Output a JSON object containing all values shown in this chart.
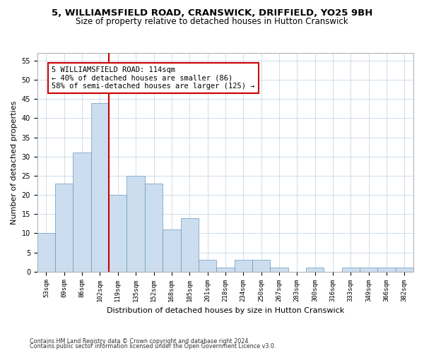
{
  "title": "5, WILLIAMSFIELD ROAD, CRANSWICK, DRIFFIELD, YO25 9BH",
  "subtitle": "Size of property relative to detached houses in Hutton Cranswick",
  "xlabel": "Distribution of detached houses by size in Hutton Cranswick",
  "ylabel": "Number of detached properties",
  "footer1": "Contains HM Land Registry data © Crown copyright and database right 2024.",
  "footer2": "Contains public sector information licensed under the Open Government Licence v3.0.",
  "bar_labels": [
    "53sqm",
    "69sqm",
    "86sqm",
    "102sqm",
    "119sqm",
    "135sqm",
    "152sqm",
    "168sqm",
    "185sqm",
    "201sqm",
    "218sqm",
    "234sqm",
    "250sqm",
    "267sqm",
    "283sqm",
    "300sqm",
    "316sqm",
    "333sqm",
    "349sqm",
    "366sqm",
    "382sqm"
  ],
  "bar_values": [
    10,
    23,
    31,
    44,
    20,
    25,
    23,
    11,
    14,
    3,
    1,
    3,
    3,
    1,
    0,
    1,
    0,
    1,
    1,
    1,
    1
  ],
  "bar_color": "#ccddef",
  "bar_edge_color": "#6699bb",
  "vline_color": "#cc0000",
  "annotation_line1": "5 WILLIAMSFIELD ROAD: 114sqm",
  "annotation_line2": "← 40% of detached houses are smaller (86)",
  "annotation_line3": "58% of semi-detached houses are larger (125) →",
  "annotation_box_color": "#ffffff",
  "annotation_box_edge": "#cc0000",
  "ylim": [
    0,
    57
  ],
  "yticks": [
    0,
    5,
    10,
    15,
    20,
    25,
    30,
    35,
    40,
    45,
    50,
    55
  ],
  "bg_color": "#ffffff",
  "grid_color": "#c8d8e8",
  "title_fontsize": 9.5,
  "subtitle_fontsize": 8.5,
  "ylabel_fontsize": 8,
  "xlabel_fontsize": 8,
  "tick_fontsize": 6.5,
  "annotation_fontsize": 7.5,
  "footer_fontsize": 5.8
}
